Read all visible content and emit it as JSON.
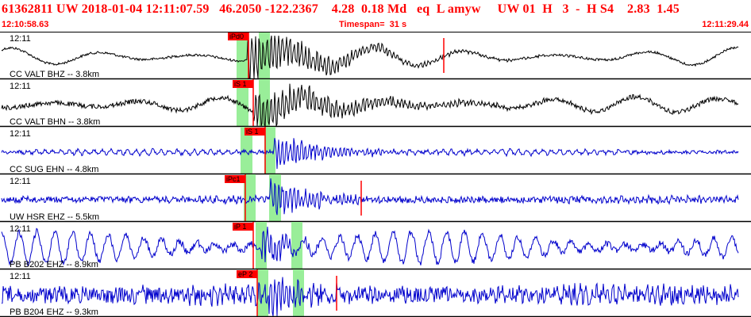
{
  "header": {
    "title": "61362811 UW 2018-01-04 12:11:07.59   46.2050 -122.2367    4.28  0.18 Md   eq  L amyw     UW 01  H   3  -  H S4    2.83  1.45",
    "start_time": "12:10:58.63",
    "timespan": "Timespan=  31 s",
    "end_time": "12:11:29.44"
  },
  "colors": {
    "header_text": "#ff0000",
    "pick_bg": "#ff0000",
    "highlight": "#99ee99",
    "pick_line": "#ff0000",
    "separator": "#000000"
  },
  "traces": [
    {
      "label": "CC VALT BHZ -- 3.8km",
      "time": "12:11",
      "color": "#000000",
      "picks": [
        {
          "label": "iPd0",
          "x": 299
        }
      ],
      "highlights": [
        [
          298,
          313
        ],
        [
          326,
          340
        ]
      ],
      "events": [
        {
          "x": 559
        }
      ]
    },
    {
      "label": "CC VALT BHN -- 3.8km",
      "time": "12:11",
      "color": "#000000",
      "picks": [
        {
          "label": "iS 1",
          "x": 305
        }
      ],
      "highlights": [
        [
          298,
          313
        ],
        [
          326,
          340
        ]
      ],
      "events": []
    },
    {
      "label": "CC SUG EHN -- 4.8km",
      "time": "12:11",
      "color": "#0000cc",
      "picks": [
        {
          "label": "iS 1",
          "x": 320
        }
      ],
      "highlights": [
        [
          303,
          318
        ],
        [
          333,
          347
        ]
      ],
      "events": []
    },
    {
      "label": "UW HSR EHZ -- 5.5km",
      "time": "12:11",
      "color": "#0000cc",
      "picks": [
        {
          "label": "iPc1",
          "x": 295
        }
      ],
      "highlights": [
        [
          307,
          322
        ],
        [
          339,
          354
        ]
      ],
      "events": [
        {
          "x": 455
        }
      ]
    },
    {
      "label": "PB B202 EHZ -- 8.9km",
      "time": "12:11",
      "color": "#0000cc",
      "picks": [
        {
          "label": "iP 1",
          "x": 305
        }
      ],
      "highlights": [
        [
          322,
          336
        ],
        [
          367,
          381
        ]
      ],
      "events": []
    },
    {
      "label": "PB B204 EHZ -- 9.3km",
      "time": "12:11",
      "color": "#0000cc",
      "picks": [
        {
          "label": "eP 2",
          "x": 310
        }
      ],
      "highlights": [
        [
          324,
          338
        ],
        [
          369,
          383
        ]
      ],
      "events": [
        {
          "x": 424
        }
      ]
    }
  ]
}
